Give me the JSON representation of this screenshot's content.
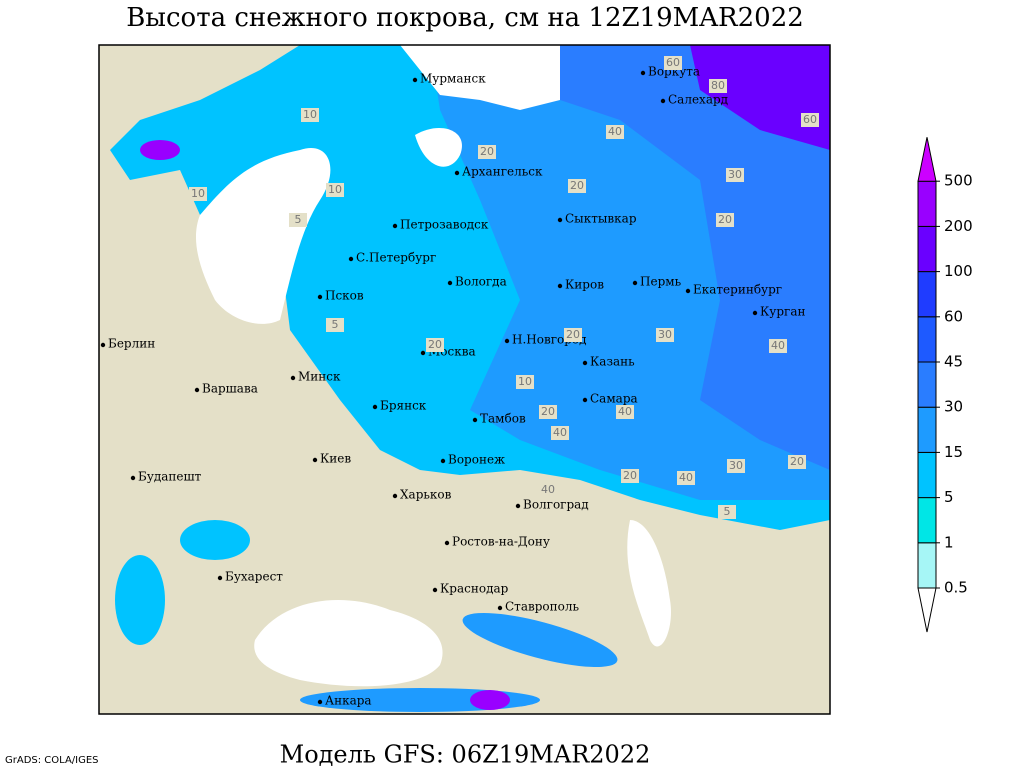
{
  "title": "Высота снежного покрова, см на 12Z19MAR2022",
  "footer": "Модель GFS: 06Z19MAR2022",
  "credit": "GrADS: COLA/IGES",
  "cities": [
    "Мурманск",
    "Воркута",
    "Салехард",
    "Архангельск",
    "Сыктывкар",
    "Петрозаводск",
    "С.Петербург",
    "Псков",
    "Вологда",
    "Киров",
    "Пермь",
    "Екатеринбург",
    "Курган",
    "Н.Новгород",
    "Казань",
    "Москва",
    "Берлин",
    "Варшава",
    "Минск",
    "Брянск",
    "Тамбов",
    "Самара",
    "Воронеж",
    "Киев",
    "Будапешт",
    "Харьков",
    "Волгоград",
    "Ростов-на-Дону",
    "Бухарест",
    "Краснодар",
    "Ставрополь",
    "Анкара"
  ],
  "contour_labels": [
    10,
    20,
    10,
    10,
    5,
    20,
    30,
    40,
    60,
    80,
    60,
    20,
    30,
    20,
    40,
    20,
    10,
    5,
    40,
    40,
    20,
    30,
    20,
    40,
    20,
    40,
    5
  ],
  "legend": {
    "levels": [
      0.5,
      1,
      5,
      15,
      30,
      45,
      60,
      100,
      200,
      500
    ],
    "colors": [
      "#ffffff",
      "#a6f6f6",
      "#00e6e6",
      "#00c3ff",
      "#1e9bff",
      "#2a7dff",
      "#1e5aff",
      "#1f3cff",
      "#6a00ff",
      "#9900ff",
      "#cc00ff"
    ]
  }
}
